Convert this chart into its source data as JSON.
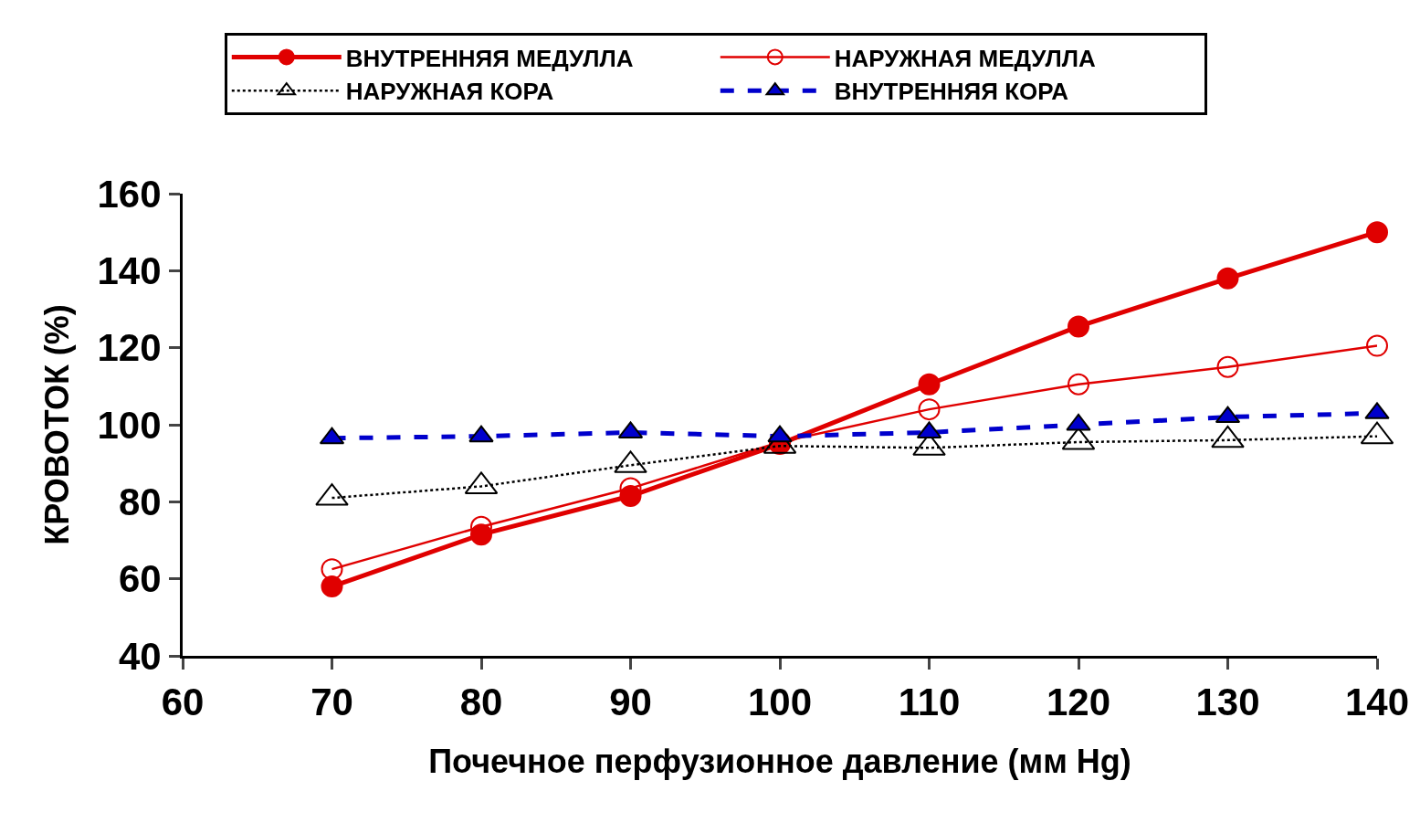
{
  "chart_data": {
    "type": "line",
    "xlabel": "Почечное перфузионное давление (мм Hg)",
    "ylabel": "КРОВОТОК (%)",
    "x": [
      70,
      80,
      90,
      100,
      110,
      120,
      130,
      140
    ],
    "series": [
      {
        "name": "ВНУТРЕННЯЯ МЕДУЛЛА",
        "color": "#e00000",
        "marker": "circle",
        "line_style": "solid",
        "values": [
          58,
          71.5,
          81.5,
          95,
          110.5,
          125.5,
          138,
          150
        ]
      },
      {
        "name": "НАРУЖНАЯ МЕДУЛЛА",
        "color": "#e00000",
        "marker": "circle-open",
        "line_style": "solid",
        "values": [
          62.5,
          73.5,
          83.5,
          95.5,
          104,
          110.5,
          115,
          120.5
        ]
      },
      {
        "name": "НАРУЖНАЯ КОРА",
        "color": "#000000",
        "marker": "triangle-open",
        "line_style": "dotted",
        "values": [
          81,
          84,
          89.5,
          94.5,
          94,
          95.5,
          96,
          97
        ]
      },
      {
        "name": "ВНУТРЕННЯЯ КОРА",
        "color": "#0000cc",
        "marker": "triangle",
        "line_style": "dashed",
        "values": [
          96.5,
          97,
          98,
          97,
          98,
          100,
          102,
          103
        ]
      }
    ],
    "xlim": [
      60,
      140
    ],
    "xticks": [
      60,
      70,
      80,
      90,
      100,
      110,
      120,
      130,
      140
    ],
    "ylim": [
      40,
      160
    ],
    "yticks": [
      40,
      60,
      80,
      100,
      120,
      140,
      160
    ],
    "legend": "top"
  }
}
